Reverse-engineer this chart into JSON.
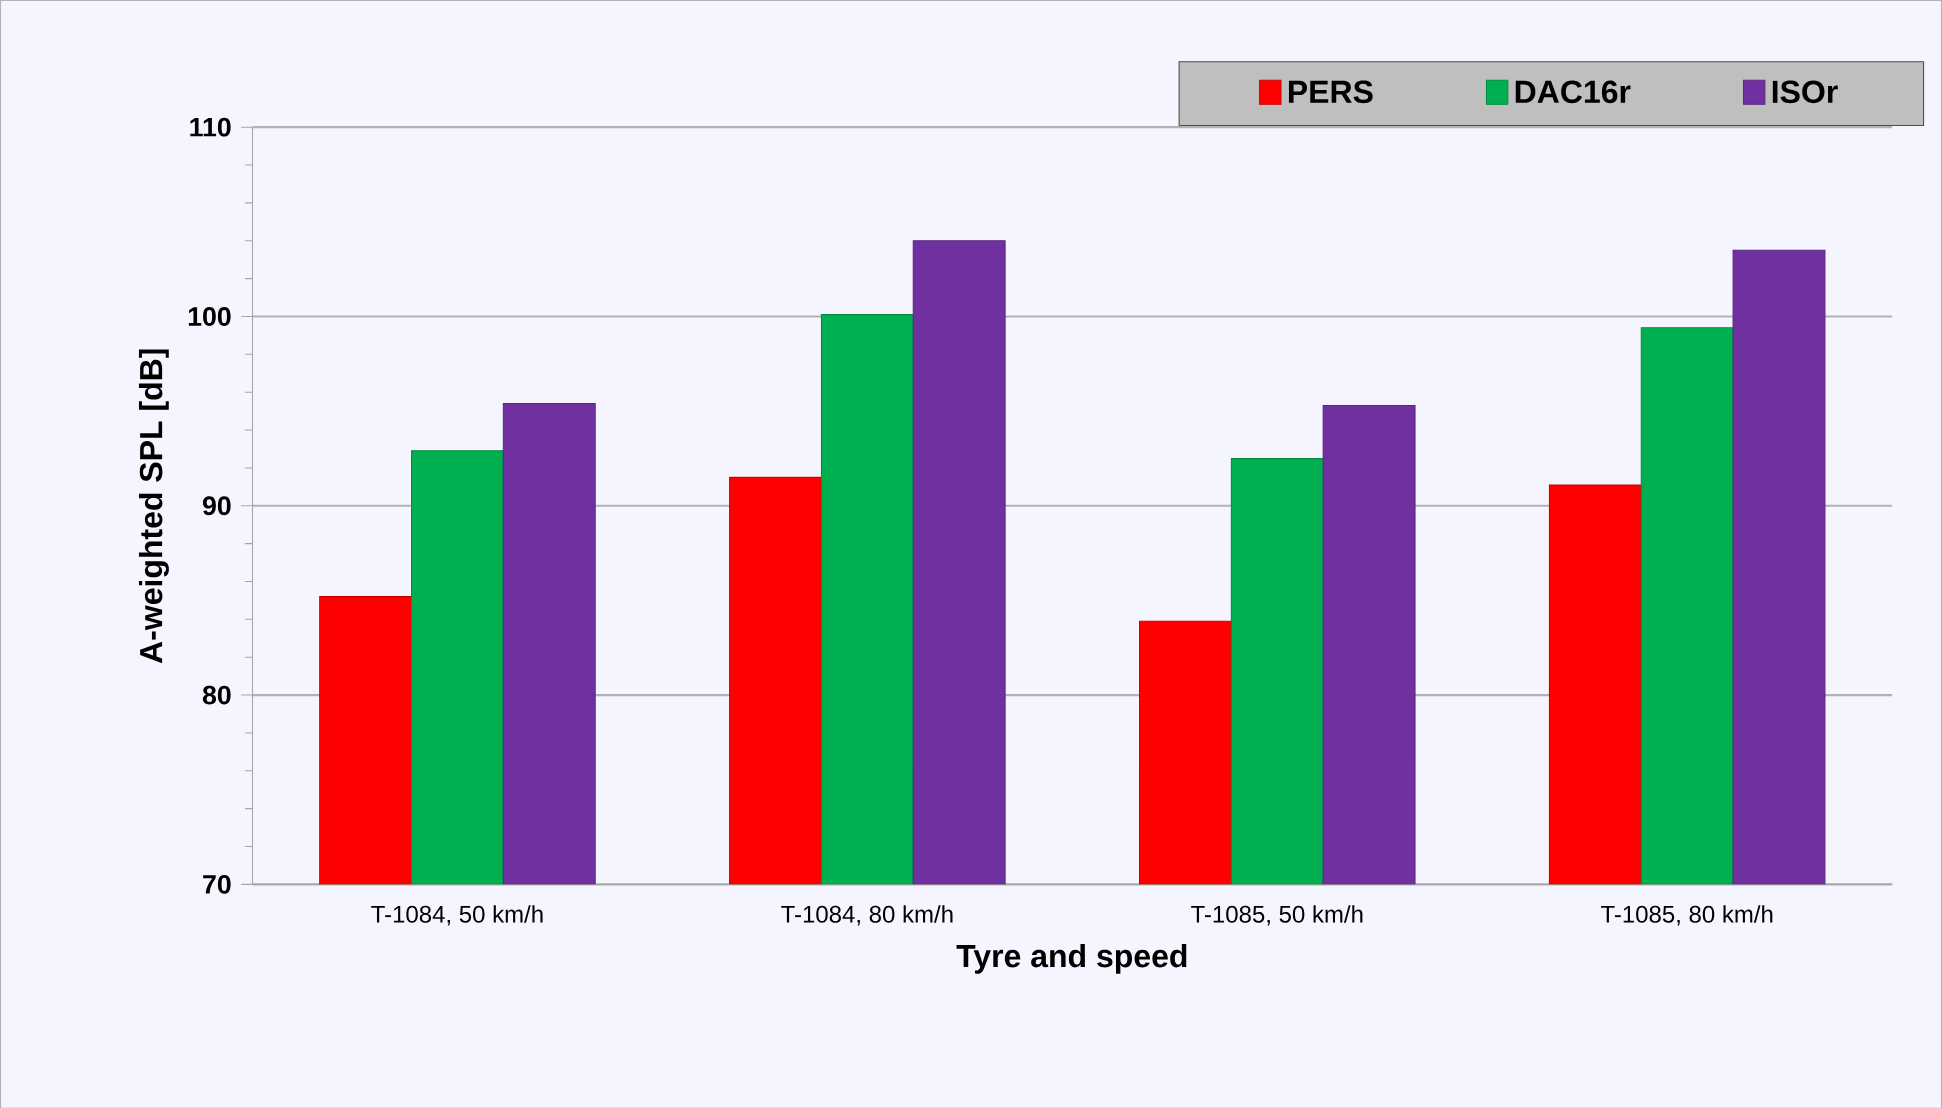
{
  "chart_data": {
    "type": "bar",
    "xlabel": "Tyre and speed",
    "ylabel": "A-weighted SPL [dB]",
    "categories": [
      "T-1084, 50 km/h",
      "T-1084, 80 km/h",
      "T-1085, 50 km/h",
      "T-1085, 80 km/h"
    ],
    "series": [
      {
        "name": "PERS",
        "color": "#ff0000",
        "values": [
          85.2,
          91.5,
          83.9,
          91.1
        ]
      },
      {
        "name": "DAC16r",
        "color": "#00b050",
        "values": [
          92.9,
          100.1,
          92.5,
          99.4
        ]
      },
      {
        "name": "ISOr",
        "color": "#7030a0",
        "values": [
          95.4,
          104.0,
          95.3,
          103.5
        ]
      }
    ],
    "ylim": [
      70,
      110
    ],
    "yticks": [
      70,
      80,
      90,
      100,
      110
    ],
    "grid": "y",
    "legend": "top right"
  }
}
